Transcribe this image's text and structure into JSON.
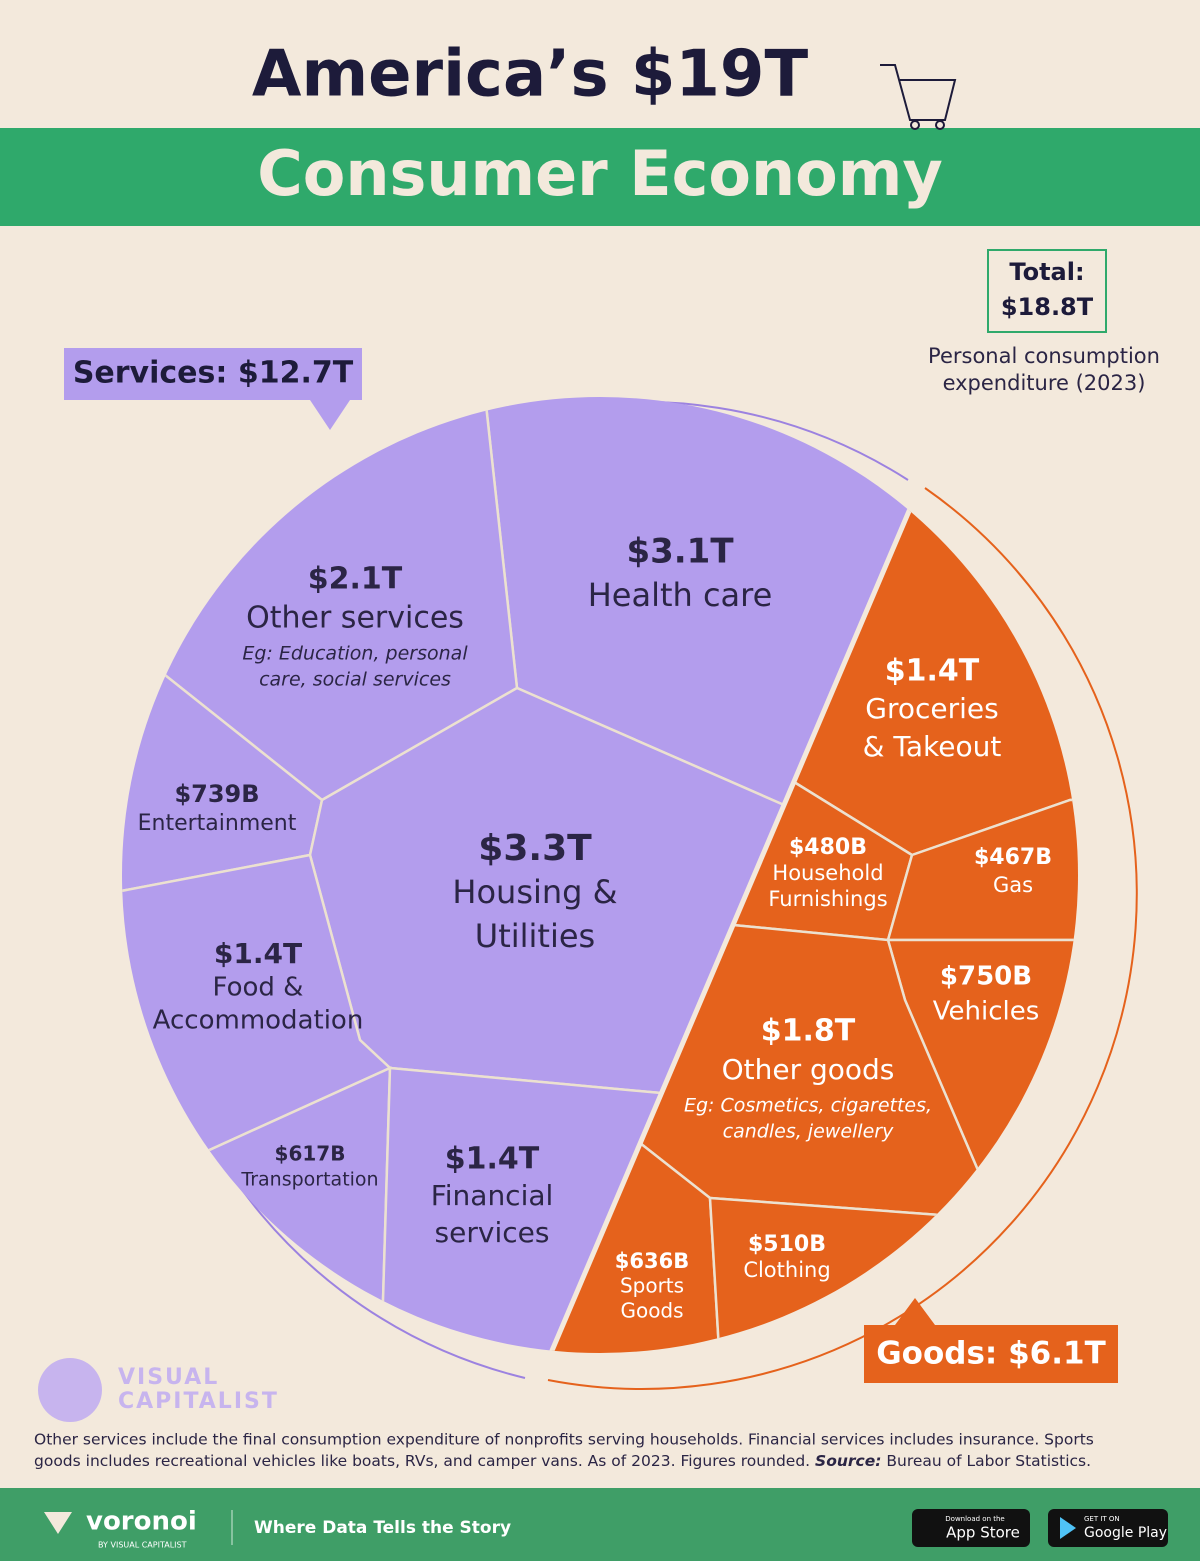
{
  "header": {
    "title": "America’s $19T",
    "subtitle": "Consumer Economy"
  },
  "total": {
    "label": "Total:",
    "value": "$18.8T",
    "note": [
      "Personal consumption",
      "expenditure (2023)"
    ]
  },
  "groups": {
    "services": "Services: $12.7T",
    "goods": "Goods: $6.1T"
  },
  "cells": [
    {
      "value": "$3.1T",
      "label": [
        "Health care"
      ]
    },
    {
      "value": "$2.1T",
      "label": [
        "Other services"
      ],
      "note": [
        "Eg: Education, personal",
        "care, social services"
      ]
    },
    {
      "value": "$739B",
      "label": [
        "Entertainment"
      ]
    },
    {
      "value": "$3.3T",
      "label": [
        "Housing &",
        "Utilities"
      ]
    },
    {
      "value": "$1.4T",
      "label": [
        "Food &",
        "Accommodation"
      ]
    },
    {
      "value": "$617B",
      "label": [
        "Transportation"
      ]
    },
    {
      "value": "$1.4T",
      "label": [
        "Financial",
        "services"
      ]
    },
    {
      "value": "$1.4T",
      "label": [
        "Groceries",
        "& Takeout"
      ]
    },
    {
      "value": "$480B",
      "label": [
        "Household",
        "Furnishings"
      ]
    },
    {
      "value": "$467B",
      "label": [
        "Gas"
      ]
    },
    {
      "value": "$750B",
      "label": [
        "Vehicles"
      ]
    },
    {
      "value": "$1.8T",
      "label": [
        "Other goods"
      ],
      "note": [
        "Eg: Cosmetics, cigarettes,",
        "candles, jewellery"
      ]
    },
    {
      "value": "$636B",
      "label": [
        "Sports",
        "Goods"
      ]
    },
    {
      "value": "$510B",
      "label": [
        "Clothing"
      ]
    }
  ],
  "logo": [
    "VISUAL",
    "CAPITALIST"
  ],
  "footnote": [
    "Other services include the final consumption expenditure of nonprofits serving households. Financial services includes insurance. Sports",
    "goods includes recreational vehicles like boats, RVs, and camper vans. As of 2023. Figures rounded."
  ],
  "source_label": "Source:",
  "source": "Bureau of Labor Statistics.",
  "footer": {
    "brand": "voronoi",
    "brand_sub": "BY VISUAL CAPITALIST",
    "tagline": "Where Data Tells the Story",
    "app_store_top": "Download on the",
    "app_store": "App Store",
    "play_top": "GET IT ON",
    "play": "Google Play"
  }
}
